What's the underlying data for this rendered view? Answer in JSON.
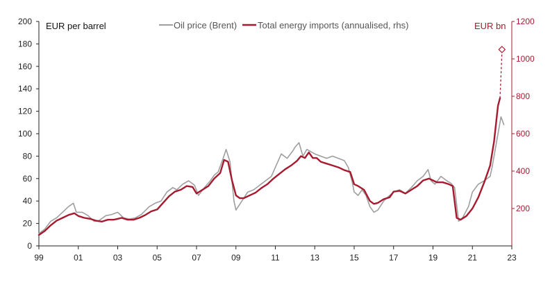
{
  "chart_data": {
    "type": "line",
    "left_axis": {
      "title": "EUR per barrel",
      "range": [
        0,
        200
      ],
      "ticks": [
        0,
        20,
        40,
        60,
        80,
        100,
        120,
        140,
        160,
        180,
        200
      ]
    },
    "right_axis": {
      "title": "EUR bn",
      "range": [
        0,
        1200
      ],
      "ticks": [
        200,
        400,
        600,
        800,
        1000,
        1200
      ]
    },
    "x_axis": {
      "range": [
        1999,
        2023
      ],
      "ticks": [
        1999,
        2001,
        2003,
        2005,
        2007,
        2009,
        2011,
        2013,
        2015,
        2017,
        2019,
        2021,
        2023
      ],
      "tick_labels": [
        "99",
        "01",
        "03",
        "05",
        "07",
        "09",
        "11",
        "13",
        "15",
        "17",
        "19",
        "21",
        "23"
      ]
    },
    "grid": false,
    "legend_position": "top-center",
    "series": [
      {
        "name": "Oil price (Brent)",
        "axis": "left",
        "color": "#9e9e9e",
        "x": [
          1999.0,
          1999.3,
          1999.6,
          1999.9,
          2000.2,
          2000.5,
          2000.75,
          2000.9,
          2001.2,
          2001.5,
          2001.8,
          2002.0,
          2002.4,
          2002.7,
          2003.0,
          2003.3,
          2003.6,
          2003.9,
          2004.2,
          2004.6,
          2004.9,
          2005.2,
          2005.5,
          2005.8,
          2006.0,
          2006.3,
          2006.6,
          2006.9,
          2007.1,
          2007.4,
          2007.7,
          2007.9,
          2008.1,
          2008.35,
          2008.5,
          2008.7,
          2008.9,
          2009.0,
          2009.3,
          2009.6,
          2009.9,
          2010.2,
          2010.5,
          2010.8,
          2011.0,
          2011.3,
          2011.6,
          2011.9,
          2012.0,
          2012.2,
          2012.4,
          2012.6,
          2012.8,
          2013.0,
          2013.3,
          2013.6,
          2013.9,
          2014.2,
          2014.5,
          2014.7,
          2014.9,
          2015.0,
          2015.2,
          2015.4,
          2015.6,
          2015.8,
          2016.0,
          2016.2,
          2016.5,
          2016.8,
          2017.0,
          2017.3,
          2017.6,
          2017.9,
          2018.2,
          2018.5,
          2018.75,
          2018.9,
          2019.1,
          2019.4,
          2019.7,
          2019.9,
          2020.1,
          2020.3,
          2020.5,
          2020.8,
          2021.0,
          2021.3,
          2021.6,
          2021.9,
          2022.0,
          2022.2,
          2022.45,
          2022.6
        ],
        "values": [
          11,
          15,
          22,
          25,
          30,
          35,
          38,
          30,
          30,
          27,
          22,
          22,
          27,
          28,
          30,
          25,
          24,
          25,
          28,
          35,
          38,
          40,
          48,
          52,
          50,
          55,
          58,
          54,
          45,
          52,
          58,
          63,
          66,
          78,
          86,
          75,
          40,
          32,
          40,
          48,
          50,
          54,
          58,
          62,
          70,
          82,
          78,
          85,
          88,
          92,
          80,
          86,
          84,
          82,
          80,
          78,
          80,
          78,
          76,
          70,
          57,
          48,
          45,
          50,
          45,
          35,
          30,
          32,
          40,
          45,
          48,
          50,
          47,
          52,
          58,
          62,
          68,
          58,
          55,
          62,
          58,
          56,
          52,
          22,
          25,
          35,
          48,
          55,
          58,
          62,
          70,
          90,
          115,
          108
        ]
      },
      {
        "name": "Total energy imports (annualised, rhs)",
        "axis": "right",
        "color": "#a6192e",
        "x": [
          1999.0,
          1999.3,
          1999.6,
          1999.9,
          2000.2,
          2000.5,
          2000.8,
          2001.0,
          2001.3,
          2001.6,
          2001.9,
          2002.2,
          2002.5,
          2002.8,
          2003.0,
          2003.2,
          2003.5,
          2003.8,
          2004.1,
          2004.4,
          2004.7,
          2005.0,
          2005.3,
          2005.6,
          2005.9,
          2006.2,
          2006.5,
          2006.8,
          2007.0,
          2007.3,
          2007.6,
          2007.9,
          2008.2,
          2008.4,
          2008.6,
          2008.8,
          2009.0,
          2009.2,
          2009.4,
          2009.7,
          2010.0,
          2010.3,
          2010.6,
          2010.9,
          2011.2,
          2011.5,
          2011.8,
          2012.1,
          2012.3,
          2012.5,
          2012.7,
          2012.9,
          2013.1,
          2013.3,
          2013.6,
          2013.9,
          2014.2,
          2014.5,
          2014.8,
          2015.0,
          2015.2,
          2015.5,
          2015.8,
          2016.0,
          2016.2,
          2016.5,
          2016.8,
          2017.0,
          2017.3,
          2017.6,
          2017.9,
          2018.2,
          2018.5,
          2018.8,
          2019.0,
          2019.2,
          2019.5,
          2019.8,
          2020.0,
          2020.2,
          2020.4,
          2020.7,
          2021.0,
          2021.3,
          2021.6,
          2021.9,
          2022.1,
          2022.3,
          2022.4
        ],
        "values": [
          58,
          80,
          110,
          135,
          150,
          165,
          175,
          160,
          150,
          145,
          135,
          130,
          140,
          140,
          145,
          150,
          140,
          140,
          150,
          165,
          185,
          195,
          230,
          265,
          290,
          300,
          320,
          315,
          280,
          300,
          320,
          360,
          390,
          460,
          450,
          350,
          270,
          255,
          255,
          270,
          285,
          310,
          330,
          360,
          385,
          410,
          430,
          455,
          480,
          470,
          500,
          470,
          470,
          450,
          440,
          430,
          420,
          405,
          395,
          330,
          320,
          300,
          240,
          225,
          230,
          250,
          260,
          290,
          295,
          280,
          300,
          320,
          350,
          360,
          350,
          340,
          340,
          330,
          320,
          150,
          140,
          160,
          200,
          260,
          340,
          430,
          560,
          750,
          790
        ]
      }
    ],
    "annotations": [
      {
        "type": "diamond-projection",
        "axis": "right",
        "from": [
          2022.4,
          790
        ],
        "to": [
          2022.5,
          1050
        ]
      }
    ]
  }
}
